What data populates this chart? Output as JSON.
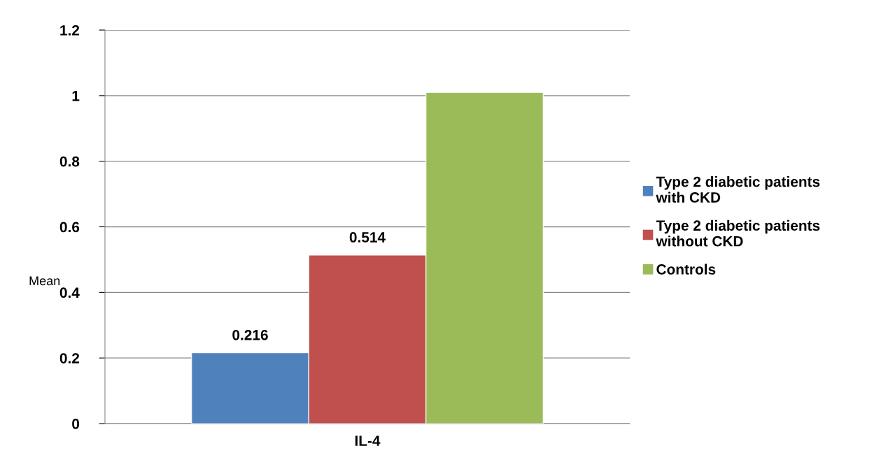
{
  "chart_data": {
    "type": "bar",
    "categories": [
      "IL-4"
    ],
    "ylabel": "Mean",
    "series": [
      {
        "name": "Type 2 diabetic patients with CKD",
        "color": "#4f81bd",
        "values": [
          0.216
        ],
        "value_labels": [
          "0.216"
        ]
      },
      {
        "name": "Type 2 diabetic patients without CKD",
        "color": "#c0504d",
        "values": [
          0.514
        ],
        "value_labels": [
          "0.514"
        ]
      },
      {
        "name": "Controls",
        "color": "#9bbb59",
        "values": [
          1.01
        ],
        "value_labels": [
          null
        ]
      }
    ],
    "ylim": [
      0,
      1.2
    ],
    "yticks": [
      0,
      0.2,
      0.4,
      0.6,
      0.8,
      1,
      1.2
    ],
    "grid": "y",
    "legend": "right"
  }
}
